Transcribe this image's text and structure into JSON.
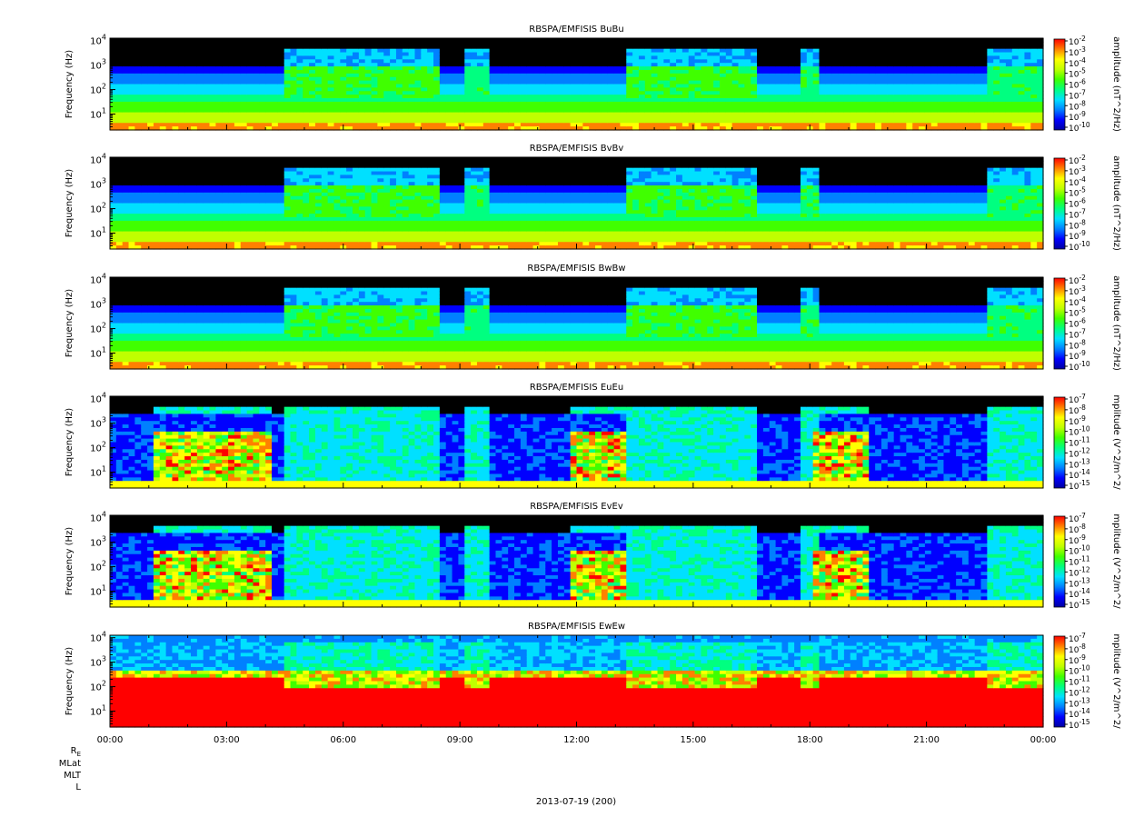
{
  "figure": {
    "date_label": "2013-07-19 (200)",
    "footer_rows": [
      "R_E",
      "MLat",
      "MLT",
      "L"
    ],
    "colormap": [
      "#0000a0",
      "#0000ff",
      "#0080ff",
      "#00e0ff",
      "#00ff80",
      "#40ff00",
      "#c0ff00",
      "#ffff00",
      "#ff8000",
      "#ff0000"
    ],
    "background_no_signal": "#000000"
  },
  "chart_data": [
    {
      "type": "heatmap",
      "title": "RBSPA/EMFISIS  BuBu",
      "ylabel": "Frequency (Hz)",
      "yscale": "log",
      "y_tick_labels": [
        "10^4",
        "10^3",
        "10^2",
        "10^1"
      ],
      "x_tick_labels": [
        "00:00",
        "03:00",
        "06:00",
        "09:00",
        "12:00",
        "15:00",
        "18:00",
        "21:00",
        "00:00"
      ],
      "colorbar": {
        "label": "amplitude (nT^2/Hz)",
        "tick_exponents": [
          -2,
          -3,
          -4,
          -5,
          -6,
          -7,
          -8,
          -9,
          -10
        ],
        "range_exponents": [
          -10,
          -2
        ]
      },
      "kind": "B"
    },
    {
      "type": "heatmap",
      "title": "RBSPA/EMFISIS  BvBv",
      "ylabel": "Frequency (Hz)",
      "yscale": "log",
      "y_tick_labels": [
        "10^4",
        "10^3",
        "10^2",
        "10^1"
      ],
      "x_tick_labels": [
        "00:00",
        "03:00",
        "06:00",
        "09:00",
        "12:00",
        "15:00",
        "18:00",
        "21:00",
        "00:00"
      ],
      "colorbar": {
        "label": "amplitude (nT^2/Hz)",
        "tick_exponents": [
          -2,
          -3,
          -4,
          -5,
          -6,
          -7,
          -8,
          -9,
          -10
        ],
        "range_exponents": [
          -10,
          -2
        ]
      },
      "kind": "B"
    },
    {
      "type": "heatmap",
      "title": "RBSPA/EMFISIS  BwBw",
      "ylabel": "Frequency (Hz)",
      "yscale": "log",
      "y_tick_labels": [
        "10^4",
        "10^3",
        "10^2",
        "10^1"
      ],
      "x_tick_labels": [
        "00:00",
        "03:00",
        "06:00",
        "09:00",
        "12:00",
        "15:00",
        "18:00",
        "21:00",
        "00:00"
      ],
      "colorbar": {
        "label": "amplitude (nT^2/Hz)",
        "tick_exponents": [
          -2,
          -3,
          -4,
          -5,
          -6,
          -7,
          -8,
          -9,
          -10
        ],
        "range_exponents": [
          -10,
          -2
        ]
      },
      "kind": "B"
    },
    {
      "type": "heatmap",
      "title": "RBSPA/EMFISIS  EuEu",
      "ylabel": "Frequency (Hz)",
      "yscale": "log",
      "y_tick_labels": [
        "10^4",
        "10^3",
        "10^2",
        "10^1"
      ],
      "x_tick_labels": [
        "00:00",
        "03:00",
        "06:00",
        "09:00",
        "12:00",
        "15:00",
        "18:00",
        "21:00",
        "00:00"
      ],
      "colorbar": {
        "label": "mplitude (V^2/m^2/",
        "tick_exponents": [
          -7,
          -8,
          -9,
          -10,
          -11,
          -12,
          -13,
          -14,
          -15
        ],
        "range_exponents": [
          -15,
          -7
        ]
      },
      "kind": "E"
    },
    {
      "type": "heatmap",
      "title": "RBSPA/EMFISIS  EvEv",
      "ylabel": "Frequency (Hz)",
      "yscale": "log",
      "y_tick_labels": [
        "10^4",
        "10^3",
        "10^2",
        "10^1"
      ],
      "x_tick_labels": [
        "00:00",
        "03:00",
        "06:00",
        "09:00",
        "12:00",
        "15:00",
        "18:00",
        "21:00",
        "00:00"
      ],
      "colorbar": {
        "label": "mplitude (V^2/m^2/",
        "tick_exponents": [
          -7,
          -8,
          -9,
          -10,
          -11,
          -12,
          -13,
          -14,
          -15
        ],
        "range_exponents": [
          -15,
          -7
        ]
      },
      "kind": "E"
    },
    {
      "type": "heatmap",
      "title": "RBSPA/EMFISIS  EwEw",
      "ylabel": "Frequency (Hz)",
      "yscale": "log",
      "y_tick_labels": [
        "10^4",
        "10^3",
        "10^2",
        "10^1"
      ],
      "x_tick_labels": [
        "00:00",
        "03:00",
        "06:00",
        "09:00",
        "12:00",
        "15:00",
        "18:00",
        "21:00",
        "00:00"
      ],
      "colorbar": {
        "label": "mplitude (V^2/m^2/",
        "tick_exponents": [
          -7,
          -8,
          -9,
          -10,
          -11,
          -12,
          -13,
          -14,
          -15
        ],
        "range_exponents": [
          -15,
          -7
        ]
      },
      "kind": "Ew"
    }
  ]
}
